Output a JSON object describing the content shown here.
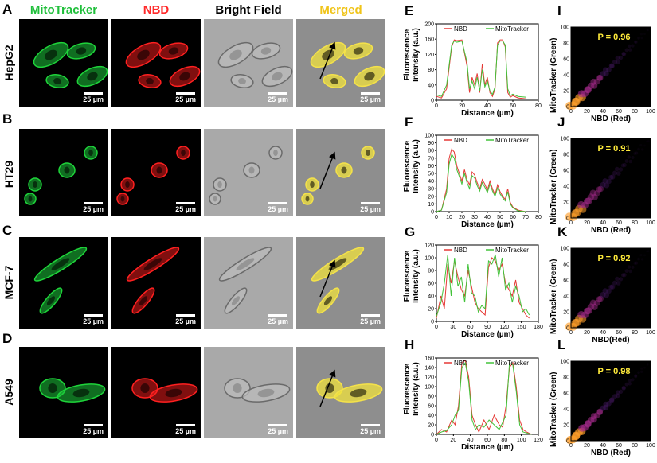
{
  "columns": [
    {
      "label": "MitoTracker",
      "color": "#1fbf3a"
    },
    {
      "label": "NBD",
      "color": "#ff2a2a"
    },
    {
      "label": "Bright Field",
      "color": "#000000"
    },
    {
      "label": "Merged",
      "color": "#f0c419"
    }
  ],
  "rows": [
    {
      "letter": "A",
      "cell": "HepG2"
    },
    {
      "letter": "B",
      "cell": "HT29"
    },
    {
      "letter": "C",
      "cell": "MCF-7"
    },
    {
      "letter": "D",
      "cell": "A549"
    }
  ],
  "scale_bar": "25 µm",
  "chart_data": [
    {
      "panel": "E",
      "type": "line",
      "xlabel": "Distance (µm)",
      "ylabel": "Fluorescence Intensity (a.u.)",
      "xlim": [
        0,
        80
      ],
      "ylim": [
        0,
        200
      ],
      "xticks": [
        0,
        20,
        40,
        60,
        80
      ],
      "yticks": [
        0,
        40,
        80,
        120,
        160,
        200
      ],
      "series": [
        {
          "name": "NBD",
          "color": "#e53935",
          "x": [
            0,
            4,
            8,
            12,
            14,
            16,
            20,
            24,
            26,
            28,
            30,
            32,
            34,
            36,
            38,
            40,
            42,
            44,
            46,
            48,
            50,
            52,
            54,
            56,
            58,
            60,
            64,
            70
          ],
          "y": [
            10,
            6,
            30,
            140,
            158,
            156,
            158,
            90,
            20,
            60,
            40,
            70,
            20,
            95,
            40,
            60,
            20,
            10,
            30,
            150,
            158,
            158,
            140,
            20,
            8,
            12,
            6,
            4
          ]
        },
        {
          "name": "MitoTracker",
          "color": "#43c23a",
          "x": [
            0,
            4,
            8,
            12,
            14,
            16,
            20,
            24,
            26,
            28,
            30,
            32,
            34,
            36,
            38,
            40,
            42,
            44,
            46,
            48,
            50,
            52,
            54,
            56,
            58,
            60,
            64,
            70
          ],
          "y": [
            14,
            10,
            40,
            145,
            155,
            152,
            155,
            100,
            30,
            50,
            30,
            60,
            25,
            80,
            35,
            50,
            25,
            15,
            35,
            145,
            155,
            155,
            145,
            30,
            12,
            16,
            10,
            8
          ]
        }
      ]
    },
    {
      "panel": "F",
      "type": "line",
      "xlabel": "Distance (µm)",
      "ylabel": "Fluorescence Intensity (a.u.)",
      "xlim": [
        0,
        80
      ],
      "ylim": [
        0,
        100
      ],
      "xticks": [
        0,
        10,
        20,
        30,
        40,
        50,
        60,
        70,
        80
      ],
      "yticks": [
        0,
        10,
        20,
        30,
        40,
        50,
        60,
        70,
        80,
        90,
        100
      ],
      "series": [
        {
          "name": "NBD",
          "color": "#e53935",
          "x": [
            0,
            4,
            8,
            10,
            12,
            14,
            16,
            18,
            20,
            22,
            24,
            26,
            28,
            30,
            32,
            34,
            36,
            38,
            40,
            42,
            44,
            46,
            48,
            50,
            52,
            54,
            56,
            58,
            60,
            62,
            64,
            70
          ],
          "y": [
            0,
            2,
            30,
            70,
            82,
            78,
            60,
            50,
            40,
            55,
            42,
            35,
            52,
            48,
            38,
            30,
            42,
            36,
            28,
            40,
            30,
            22,
            35,
            26,
            20,
            16,
            30,
            12,
            6,
            4,
            2,
            0
          ]
        },
        {
          "name": "MitoTracker",
          "color": "#43c23a",
          "x": [
            0,
            4,
            8,
            10,
            12,
            14,
            16,
            18,
            20,
            22,
            24,
            26,
            28,
            30,
            32,
            34,
            36,
            38,
            40,
            42,
            44,
            46,
            48,
            50,
            52,
            54,
            56,
            58,
            60,
            62,
            64,
            70
          ],
          "y": [
            0,
            2,
            25,
            62,
            75,
            70,
            55,
            46,
            36,
            50,
            38,
            30,
            47,
            44,
            34,
            27,
            38,
            32,
            25,
            36,
            27,
            20,
            31,
            23,
            18,
            14,
            26,
            10,
            5,
            3,
            1,
            0
          ]
        }
      ]
    },
    {
      "panel": "G",
      "type": "line",
      "xlabel": "Distance (µm)",
      "ylabel": "Fluorescence Intensity (a.u.)",
      "xlim": [
        0,
        180
      ],
      "ylim": [
        0,
        120
      ],
      "xticks": [
        0,
        30,
        60,
        90,
        120,
        150,
        180
      ],
      "yticks": [
        0,
        20,
        40,
        60,
        80,
        100,
        120
      ],
      "series": [
        {
          "name": "NBD",
          "color": "#e53935",
          "x": [
            0,
            8,
            14,
            20,
            26,
            32,
            38,
            44,
            50,
            56,
            62,
            68,
            74,
            80,
            86,
            92,
            98,
            104,
            110,
            116,
            122,
            128,
            134,
            140,
            146,
            152,
            158,
            164
          ],
          "y": [
            5,
            40,
            20,
            90,
            60,
            95,
            70,
            50,
            40,
            80,
            55,
            30,
            20,
            15,
            10,
            85,
            100,
            95,
            80,
            90,
            60,
            50,
            40,
            65,
            30,
            20,
            10,
            5
          ]
        },
        {
          "name": "MitoTracker",
          "color": "#43c23a",
          "x": [
            0,
            8,
            14,
            20,
            26,
            32,
            38,
            44,
            50,
            56,
            62,
            68,
            74,
            80,
            86,
            92,
            98,
            104,
            110,
            116,
            122,
            128,
            134,
            140,
            146,
            152,
            158,
            164
          ],
          "y": [
            8,
            30,
            60,
            105,
            40,
            100,
            55,
            70,
            30,
            90,
            45,
            40,
            15,
            25,
            20,
            95,
            90,
            105,
            70,
            100,
            50,
            60,
            30,
            55,
            40,
            15,
            20,
            10
          ]
        }
      ]
    },
    {
      "panel": "H",
      "type": "line",
      "xlabel": "Distance (µm)",
      "ylabel": "Fluorescence Intensity (a.u.)",
      "xlim": [
        0,
        120
      ],
      "ylim": [
        0,
        160
      ],
      "xticks": [
        0,
        20,
        40,
        60,
        80,
        100,
        120
      ],
      "yticks": [
        0,
        20,
        40,
        60,
        80,
        100,
        120,
        140,
        160
      ],
      "series": [
        {
          "name": "NBD",
          "color": "#e53935",
          "x": [
            0,
            6,
            12,
            18,
            22,
            26,
            30,
            34,
            38,
            42,
            46,
            50,
            56,
            62,
            68,
            74,
            78,
            82,
            86,
            90,
            94,
            98,
            102,
            106,
            112
          ],
          "y": [
            0,
            10,
            5,
            30,
            20,
            60,
            150,
            155,
            120,
            40,
            20,
            5,
            30,
            10,
            40,
            20,
            15,
            60,
            140,
            150,
            100,
            30,
            10,
            5,
            0
          ]
        },
        {
          "name": "MitoTracker",
          "color": "#43c23a",
          "x": [
            0,
            6,
            12,
            18,
            22,
            26,
            30,
            34,
            38,
            42,
            46,
            50,
            56,
            62,
            68,
            74,
            78,
            82,
            86,
            90,
            94,
            98,
            102,
            106,
            112
          ],
          "y": [
            0,
            5,
            8,
            20,
            40,
            50,
            140,
            150,
            110,
            30,
            10,
            20,
            15,
            30,
            20,
            10,
            25,
            40,
            150,
            145,
            90,
            20,
            5,
            3,
            0
          ]
        }
      ]
    },
    {
      "panel": "I",
      "type": "heatmap",
      "pvalue": "P = 0.96",
      "xlabel": "NBD (Red)",
      "ylabel": "MitoTracker (Green)",
      "xlim": [
        0,
        100
      ],
      "ylim": [
        0,
        100
      ],
      "xticks": [
        0,
        20,
        40,
        60,
        80,
        100
      ],
      "yticks": [
        0,
        20,
        40,
        60,
        80,
        100
      ],
      "spread": 0.55
    },
    {
      "panel": "J",
      "type": "heatmap",
      "pvalue": "P = 0.91",
      "xlabel": "NBD (Red)",
      "ylabel": "MitoTracker (Green)",
      "xlim": [
        0,
        100
      ],
      "ylim": [
        0,
        100
      ],
      "xticks": [
        0,
        20,
        40,
        60,
        80,
        100
      ],
      "yticks": [
        0,
        20,
        40,
        60,
        80,
        100
      ],
      "spread": 0.75
    },
    {
      "panel": "K",
      "type": "heatmap",
      "pvalue": "P = 0.92",
      "xlabel": "NBD(Red)",
      "ylabel": "MitoTracker (Green)",
      "xlim": [
        0,
        100
      ],
      "ylim": [
        0,
        100
      ],
      "xticks": [
        0,
        20,
        40,
        60,
        80,
        100
      ],
      "yticks": [
        0,
        20,
        40,
        60,
        80,
        100
      ],
      "spread": 0.7
    },
    {
      "panel": "L",
      "type": "heatmap",
      "pvalue": "P = 0.98",
      "xlabel": "NBD (Red)",
      "ylabel": "MitoTracker (Green)",
      "xlim": [
        0,
        100
      ],
      "ylim": [
        0,
        100
      ],
      "xticks": [
        0,
        20,
        40,
        60,
        80,
        100
      ],
      "yticks": [
        0,
        20,
        40,
        60,
        80,
        100
      ],
      "spread": 0.4
    }
  ]
}
